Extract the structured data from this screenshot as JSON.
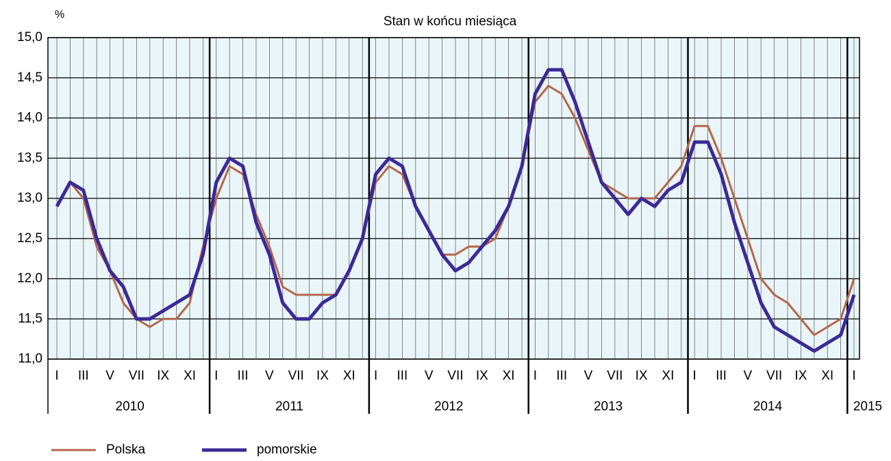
{
  "chart_data": {
    "type": "line",
    "title": "Stan w końcu miesiąca",
    "y_unit": "%",
    "categories": [
      "I",
      null,
      "III",
      null,
      "V",
      null,
      "VII",
      null,
      "IX",
      null,
      "XI",
      null,
      "I",
      null,
      "III",
      null,
      "V",
      null,
      "VII",
      null,
      "IX",
      null,
      "XI",
      null,
      "I",
      null,
      "III",
      null,
      "V",
      null,
      "VII",
      null,
      "IX",
      null,
      "XI",
      null,
      "I",
      null,
      "III",
      null,
      "V",
      null,
      "VII",
      null,
      "IX",
      null,
      "XI",
      null,
      "I",
      null,
      "III",
      null,
      "V",
      null,
      "VII",
      null,
      "IX",
      null,
      "XI",
      null,
      "I"
    ],
    "year_groups": [
      "2010",
      "2011",
      "2012",
      "2013",
      "2014",
      "2015"
    ],
    "series": [
      {
        "name": "Polska",
        "color": "#b5654a",
        "width": 3,
        "values": [
          12.9,
          13.2,
          13.0,
          12.4,
          12.1,
          11.7,
          11.5,
          11.4,
          11.5,
          11.5,
          11.7,
          12.4,
          13.0,
          13.4,
          13.3,
          12.8,
          12.4,
          11.9,
          11.8,
          11.8,
          11.8,
          11.8,
          12.1,
          12.5,
          13.2,
          13.4,
          13.3,
          12.9,
          12.6,
          12.3,
          12.3,
          12.4,
          12.4,
          12.5,
          12.9,
          13.4,
          14.2,
          14.4,
          14.3,
          14.0,
          13.6,
          13.2,
          13.1,
          13.0,
          13.0,
          13.0,
          13.2,
          13.4,
          13.9,
          13.9,
          13.5,
          13.0,
          12.5,
          12.0,
          11.8,
          11.7,
          11.5,
          11.3,
          11.4,
          11.5,
          12.0
        ]
      },
      {
        "name": "pomorskie",
        "color": "#3b2a96",
        "width": 5,
        "values": [
          12.9,
          13.2,
          13.1,
          12.5,
          12.1,
          11.9,
          11.5,
          11.5,
          11.6,
          11.7,
          11.8,
          12.3,
          13.2,
          13.5,
          13.4,
          12.7,
          12.3,
          11.7,
          11.5,
          11.5,
          11.7,
          11.8,
          12.1,
          12.5,
          13.3,
          13.5,
          13.4,
          12.9,
          12.6,
          12.3,
          12.1,
          12.2,
          12.4,
          12.6,
          12.9,
          13.4,
          14.3,
          14.6,
          14.6,
          14.2,
          13.7,
          13.2,
          13.0,
          12.8,
          13.0,
          12.9,
          13.1,
          13.2,
          13.7,
          13.7,
          13.3,
          12.7,
          12.2,
          11.7,
          11.4,
          11.3,
          11.2,
          11.1,
          11.2,
          11.3,
          11.8
        ]
      }
    ],
    "ylim": [
      11,
      15
    ],
    "yticks": [
      {
        "value": 11,
        "label": "11,0"
      },
      {
        "value": 11.5,
        "label": "11,5"
      },
      {
        "value": 12,
        "label": "12,0"
      },
      {
        "value": 12.5,
        "label": "12,5"
      },
      {
        "value": 13,
        "label": "13,0"
      },
      {
        "value": 13.5,
        "label": "13,5"
      },
      {
        "value": 14,
        "label": "14,0"
      },
      {
        "value": 14.5,
        "label": "14,5"
      },
      {
        "value": 15,
        "label": "15,0"
      }
    ],
    "grid": true,
    "legend": "bottom-left"
  }
}
